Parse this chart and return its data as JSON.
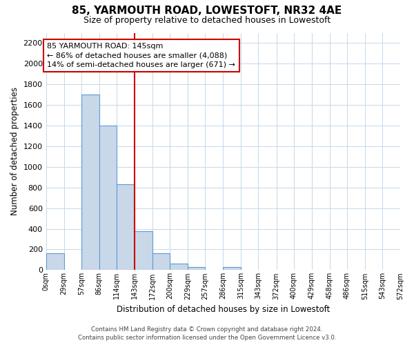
{
  "title": "85, YARMOUTH ROAD, LOWESTOFT, NR32 4AE",
  "subtitle": "Size of property relative to detached houses in Lowestoft",
  "xlabel": "Distribution of detached houses by size in Lowestoft",
  "ylabel": "Number of detached properties",
  "bin_edges": [
    0,
    29,
    57,
    86,
    114,
    143,
    172,
    200,
    229,
    257,
    286,
    315,
    343,
    372,
    400,
    429,
    458,
    486,
    515,
    543,
    572
  ],
  "bar_heights": [
    160,
    0,
    1700,
    1400,
    830,
    380,
    165,
    65,
    30,
    0,
    30,
    0,
    0,
    0,
    0,
    0,
    0,
    0,
    0,
    0
  ],
  "bar_color": "#c8d8e8",
  "bar_edge_color": "#5b9bd5",
  "tick_labels": [
    "0sqm",
    "29sqm",
    "57sqm",
    "86sqm",
    "114sqm",
    "143sqm",
    "172sqm",
    "200sqm",
    "229sqm",
    "257sqm",
    "286sqm",
    "315sqm",
    "343sqm",
    "372sqm",
    "400sqm",
    "429sqm",
    "458sqm",
    "486sqm",
    "515sqm",
    "543sqm",
    "572sqm"
  ],
  "ylim_max": 2300,
  "yticks": [
    0,
    200,
    400,
    600,
    800,
    1000,
    1200,
    1400,
    1600,
    1800,
    2000,
    2200
  ],
  "vline_x": 143,
  "vline_color": "#cc0000",
  "ann_title": "85 YARMOUTH ROAD: 145sqm",
  "ann_line1": "← 86% of detached houses are smaller (4,088)",
  "ann_line2": "14% of semi-detached houses are larger (671) →",
  "footer_line1": "Contains HM Land Registry data © Crown copyright and database right 2024.",
  "footer_line2": "Contains public sector information licensed under the Open Government Licence v3.0.",
  "bg_color": "#ffffff",
  "grid_color": "#c5d8ea"
}
